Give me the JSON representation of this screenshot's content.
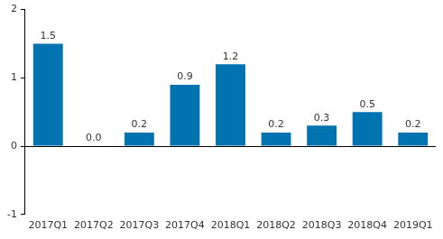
{
  "chart_data": {
    "type": "bar",
    "categories": [
      "2017Q1",
      "2017Q2",
      "2017Q3",
      "2017Q4",
      "2018Q1",
      "2018Q2",
      "2018Q3",
      "2018Q4",
      "2019Q1"
    ],
    "values": [
      1.5,
      0.0,
      0.2,
      0.9,
      1.2,
      0.2,
      0.3,
      0.5,
      0.2
    ],
    "value_labels": [
      "1.5",
      "0.0",
      "0.2",
      "0.9",
      "1.2",
      "0.2",
      "0.3",
      "0.5",
      "0.2"
    ],
    "color": "#0073b0",
    "ylim": [
      -1,
      2
    ],
    "yticks": [
      -1,
      0,
      1,
      2
    ],
    "grid": false,
    "data_labels": true
  }
}
